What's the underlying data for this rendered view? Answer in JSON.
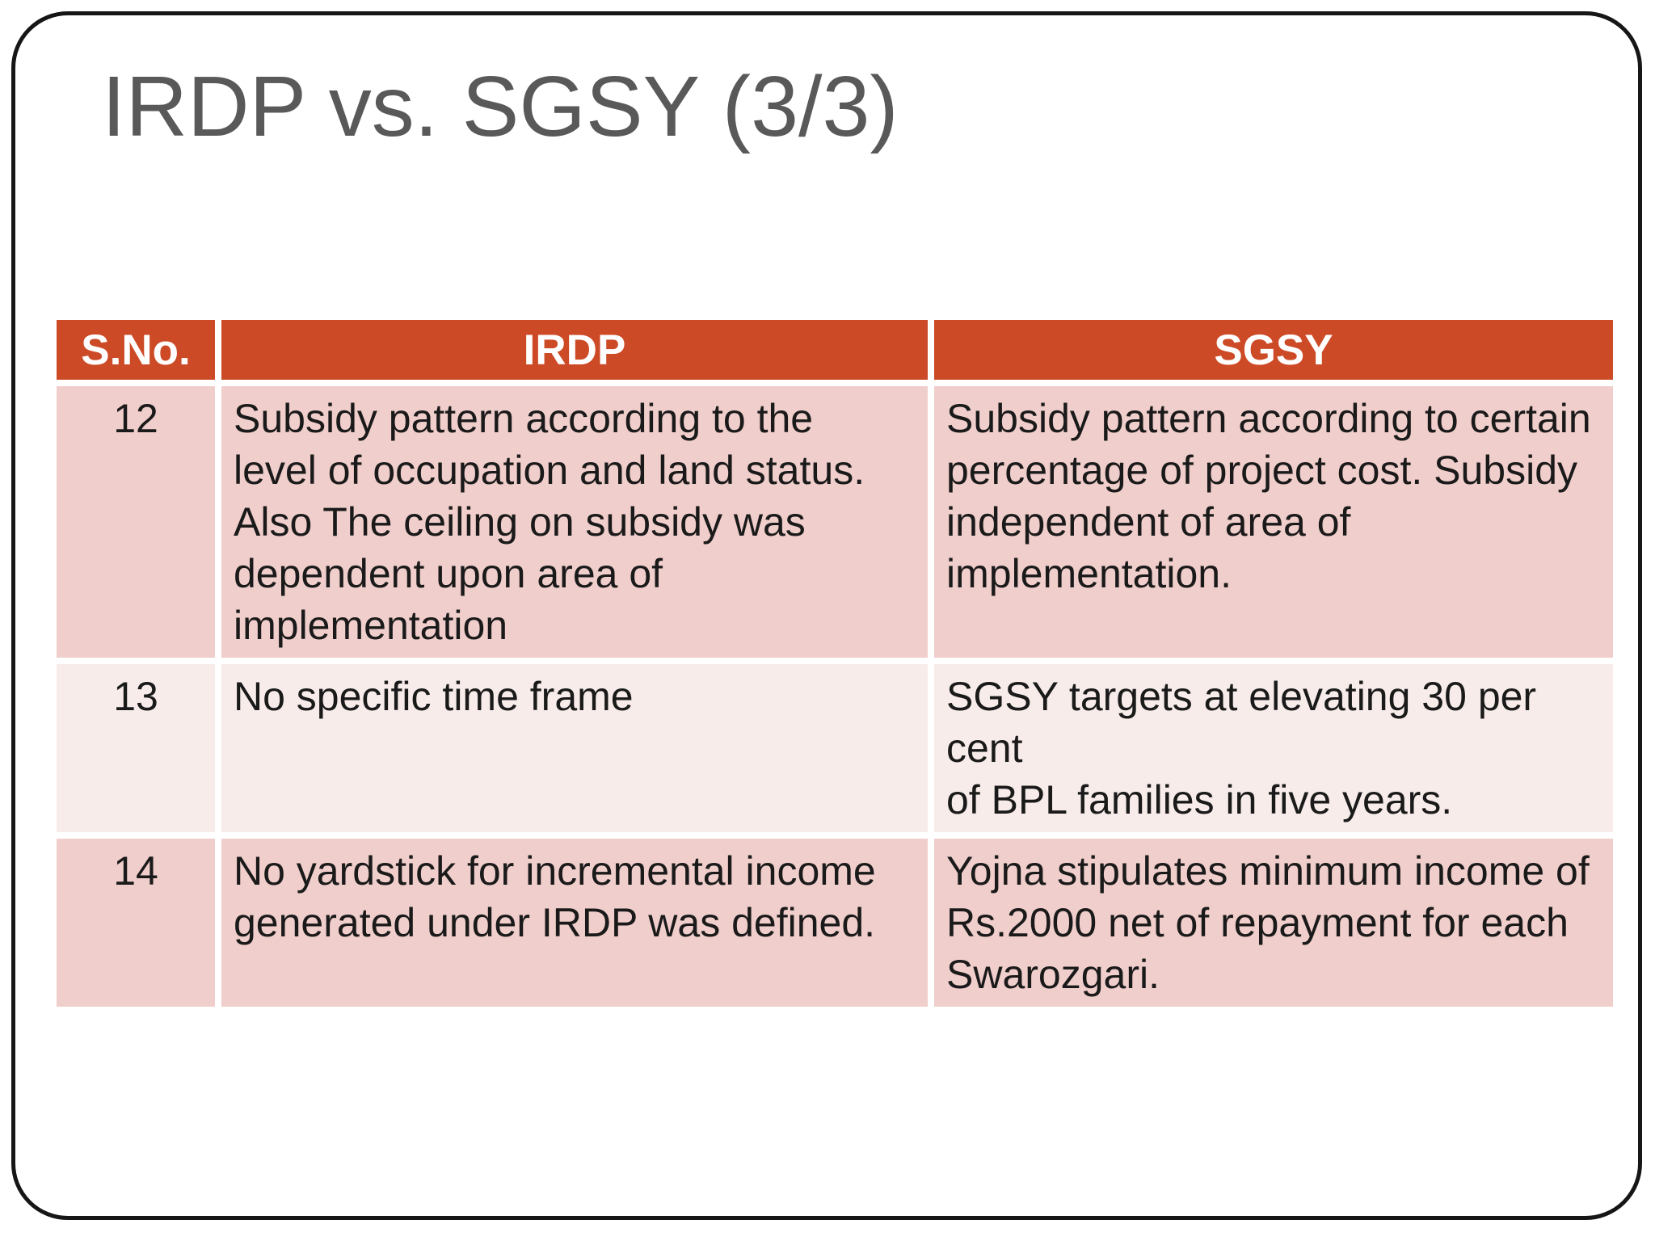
{
  "slide": {
    "title": "IRDP vs. SGSY (3/3)"
  },
  "table": {
    "headers": {
      "sno": "S.No.",
      "irdp": "IRDP",
      "sgsy": "SGSY"
    },
    "rows": [
      {
        "sno": "12",
        "irdp": "Subsidy pattern according to the\nlevel of occupation and land status.\nAlso The ceiling on subsidy was\ndependent upon area of\nimplementation",
        "sgsy": "Subsidy pattern according to certain\npercentage of project cost. Subsidy\nindependent of area of\nimplementation."
      },
      {
        "sno": "13",
        "irdp": "No specific time frame",
        "sgsy": "SGSY targets at elevating 30 per\ncent\nof BPL families in five years."
      },
      {
        "sno": "14",
        "irdp": "No yardstick for incremental income\ngenerated under IRDP was defined.",
        "sgsy": "Yojna stipulates minimum income of\nRs.2000 net of repayment for each\nSwarozgari."
      }
    ]
  },
  "colors": {
    "header_bg": "#cd4a26",
    "band_dark": "#f0cecb",
    "band_light": "#f7ece9",
    "header_text": "#ffffff",
    "body_text": "#1a1a1a",
    "title_text": "#595959",
    "frame_border": "#161616"
  }
}
